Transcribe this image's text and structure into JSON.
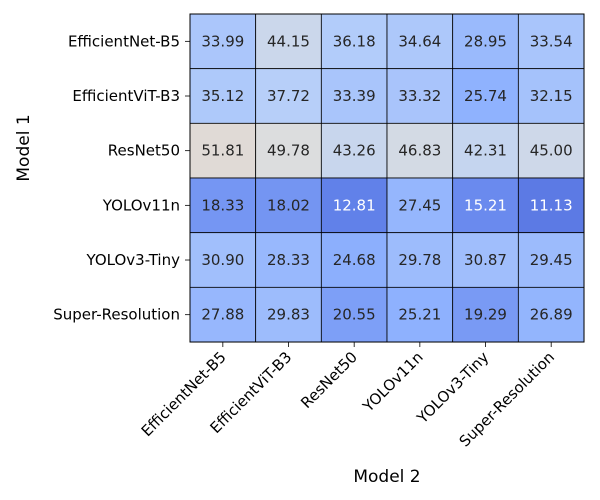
{
  "chart_data": {
    "type": "heatmap",
    "title": "",
    "xlabel": "Model 2",
    "ylabel": "Model 1",
    "x_categories": [
      "EfficientNet-B5",
      "EfficientViT-B3",
      "ResNet50",
      "YOLOv11n",
      "YOLOv3-Tiny",
      "Super-Resolution"
    ],
    "y_categories": [
      "EfficientNet-B5",
      "EfficientViT-B3",
      "ResNet50",
      "YOLOv11n",
      "YOLOv3-Tiny",
      "Super-Resolution"
    ],
    "values": [
      [
        33.99,
        44.15,
        36.18,
        34.64,
        28.95,
        33.54
      ],
      [
        35.12,
        37.72,
        33.39,
        33.32,
        25.74,
        32.15
      ],
      [
        51.81,
        49.78,
        43.26,
        46.83,
        42.31,
        45.0
      ],
      [
        18.33,
        18.02,
        12.81,
        27.45,
        15.21,
        11.13
      ],
      [
        30.9,
        28.33,
        24.68,
        29.78,
        30.87,
        29.45
      ],
      [
        27.88,
        29.83,
        20.55,
        25.21,
        19.29,
        26.89
      ]
    ],
    "value_format": "2-decimal",
    "colormap": "coolwarm",
    "color_range": [
      0,
      100
    ],
    "colorbar": false,
    "grid_lines": true,
    "grid_color": "#000000"
  }
}
